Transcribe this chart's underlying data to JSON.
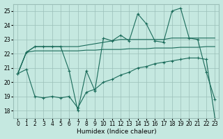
{
  "xlabel": "Humidex (Indice chaleur)",
  "background_color": "#c5e8e0",
  "grid_color": "#9bbfb8",
  "line_color": "#1a6b5a",
  "xlim": [
    -0.5,
    23.5
  ],
  "ylim": [
    17.5,
    25.5
  ],
  "yticks": [
    18,
    19,
    20,
    21,
    22,
    23,
    24,
    25
  ],
  "xticks": [
    0,
    1,
    2,
    3,
    4,
    5,
    6,
    7,
    8,
    9,
    10,
    11,
    12,
    13,
    14,
    15,
    16,
    17,
    18,
    19,
    20,
    21,
    22,
    23
  ],
  "line1_x": [
    0,
    1,
    2,
    3,
    4,
    5,
    6,
    7,
    8,
    9,
    10,
    11,
    12,
    13,
    14,
    15,
    16,
    17,
    18,
    19,
    20,
    21,
    22,
    23
  ],
  "line1_y": [
    20.6,
    22.1,
    22.5,
    22.5,
    22.5,
    22.5,
    20.8,
    18.0,
    20.8,
    19.4,
    23.1,
    22.9,
    23.3,
    22.9,
    24.8,
    24.1,
    22.9,
    22.8,
    25.0,
    25.2,
    23.1,
    23.0,
    20.7,
    18.8
  ],
  "line2_x": [
    0,
    1,
    2,
    3,
    4,
    5,
    6,
    7,
    8,
    9,
    10,
    11,
    12,
    13,
    14,
    15,
    16,
    17,
    18,
    19,
    20,
    21,
    22,
    23
  ],
  "line2_y": [
    20.6,
    22.1,
    22.5,
    22.5,
    22.5,
    22.5,
    22.5,
    22.5,
    22.6,
    22.7,
    22.8,
    22.9,
    23.0,
    23.0,
    23.0,
    23.0,
    23.0,
    23.0,
    23.1,
    23.1,
    23.1,
    23.1,
    23.1,
    23.1
  ],
  "line3_x": [
    0,
    1,
    2,
    3,
    4,
    5,
    6,
    7,
    8,
    9,
    10,
    11,
    12,
    13,
    14,
    15,
    16,
    17,
    18,
    19,
    20,
    21,
    22,
    23
  ],
  "line3_y": [
    20.6,
    22.1,
    22.2,
    22.2,
    22.2,
    22.2,
    22.2,
    22.2,
    22.25,
    22.25,
    22.3,
    22.3,
    22.3,
    22.35,
    22.35,
    22.35,
    22.4,
    22.4,
    22.4,
    22.45,
    22.45,
    22.45,
    22.5,
    22.5
  ],
  "line4_x": [
    0,
    1,
    2,
    3,
    4,
    5,
    6,
    7,
    8,
    9,
    10,
    11,
    12,
    13,
    14,
    15,
    16,
    17,
    18,
    19,
    20,
    21,
    22,
    23
  ],
  "line4_y": [
    20.6,
    20.9,
    19.0,
    18.9,
    19.0,
    18.9,
    19.0,
    18.2,
    19.3,
    19.5,
    20.0,
    20.2,
    20.5,
    20.7,
    21.0,
    21.1,
    21.3,
    21.4,
    21.5,
    21.6,
    21.7,
    21.7,
    21.6,
    17.5
  ]
}
